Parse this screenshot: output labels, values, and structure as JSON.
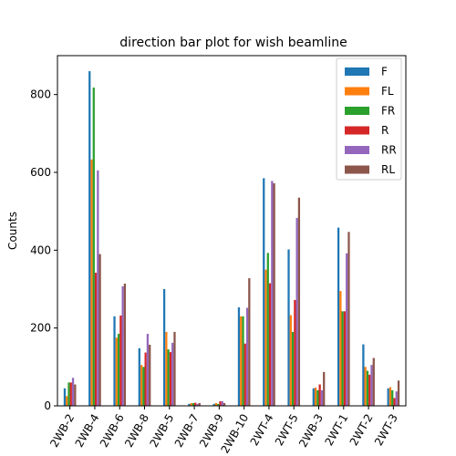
{
  "chart_data": {
    "type": "bar",
    "title": "direction bar plot for wish beamline",
    "xlabel": "",
    "ylabel": "Counts",
    "ylim": [
      0,
      900
    ],
    "yticks": [
      0,
      200,
      400,
      600,
      800
    ],
    "grid": false,
    "legend_position": "top-right",
    "categories": [
      "2WB-2",
      "2WB-4",
      "2WB-6",
      "2WB-8",
      "2WB-5",
      "2WB-7",
      "2WB-9",
      "2WB-10",
      "2WT-4",
      "2WT-5",
      "2WB-3",
      "2WT-1",
      "2WT-2",
      "2WT-3"
    ],
    "series": [
      {
        "name": "F",
        "color": "#1f77b4",
        "values": [
          45,
          860,
          230,
          148,
          300,
          5,
          5,
          253,
          585,
          402,
          45,
          458,
          158,
          45
        ]
      },
      {
        "name": "FL",
        "color": "#ff7f0e",
        "values": [
          25,
          633,
          175,
          105,
          190,
          7,
          7,
          230,
          350,
          233,
          47,
          295,
          100,
          48
        ]
      },
      {
        "name": "FR",
        "color": "#2ca02c",
        "values": [
          60,
          818,
          185,
          100,
          145,
          7,
          5,
          230,
          393,
          190,
          40,
          243,
          90,
          40
        ]
      },
      {
        "name": "R",
        "color": "#d62728",
        "values": [
          60,
          342,
          232,
          137,
          138,
          8,
          12,
          160,
          315,
          272,
          55,
          243,
          80,
          20
        ]
      },
      {
        "name": "RR",
        "color": "#9467bd",
        "values": [
          72,
          605,
          307,
          185,
          162,
          5,
          12,
          252,
          578,
          483,
          40,
          392,
          105,
          37
        ]
      },
      {
        "name": "RL",
        "color": "#8c564b",
        "values": [
          55,
          390,
          314,
          157,
          190,
          7,
          7,
          328,
          572,
          535,
          87,
          447,
          123,
          65
        ]
      }
    ]
  }
}
